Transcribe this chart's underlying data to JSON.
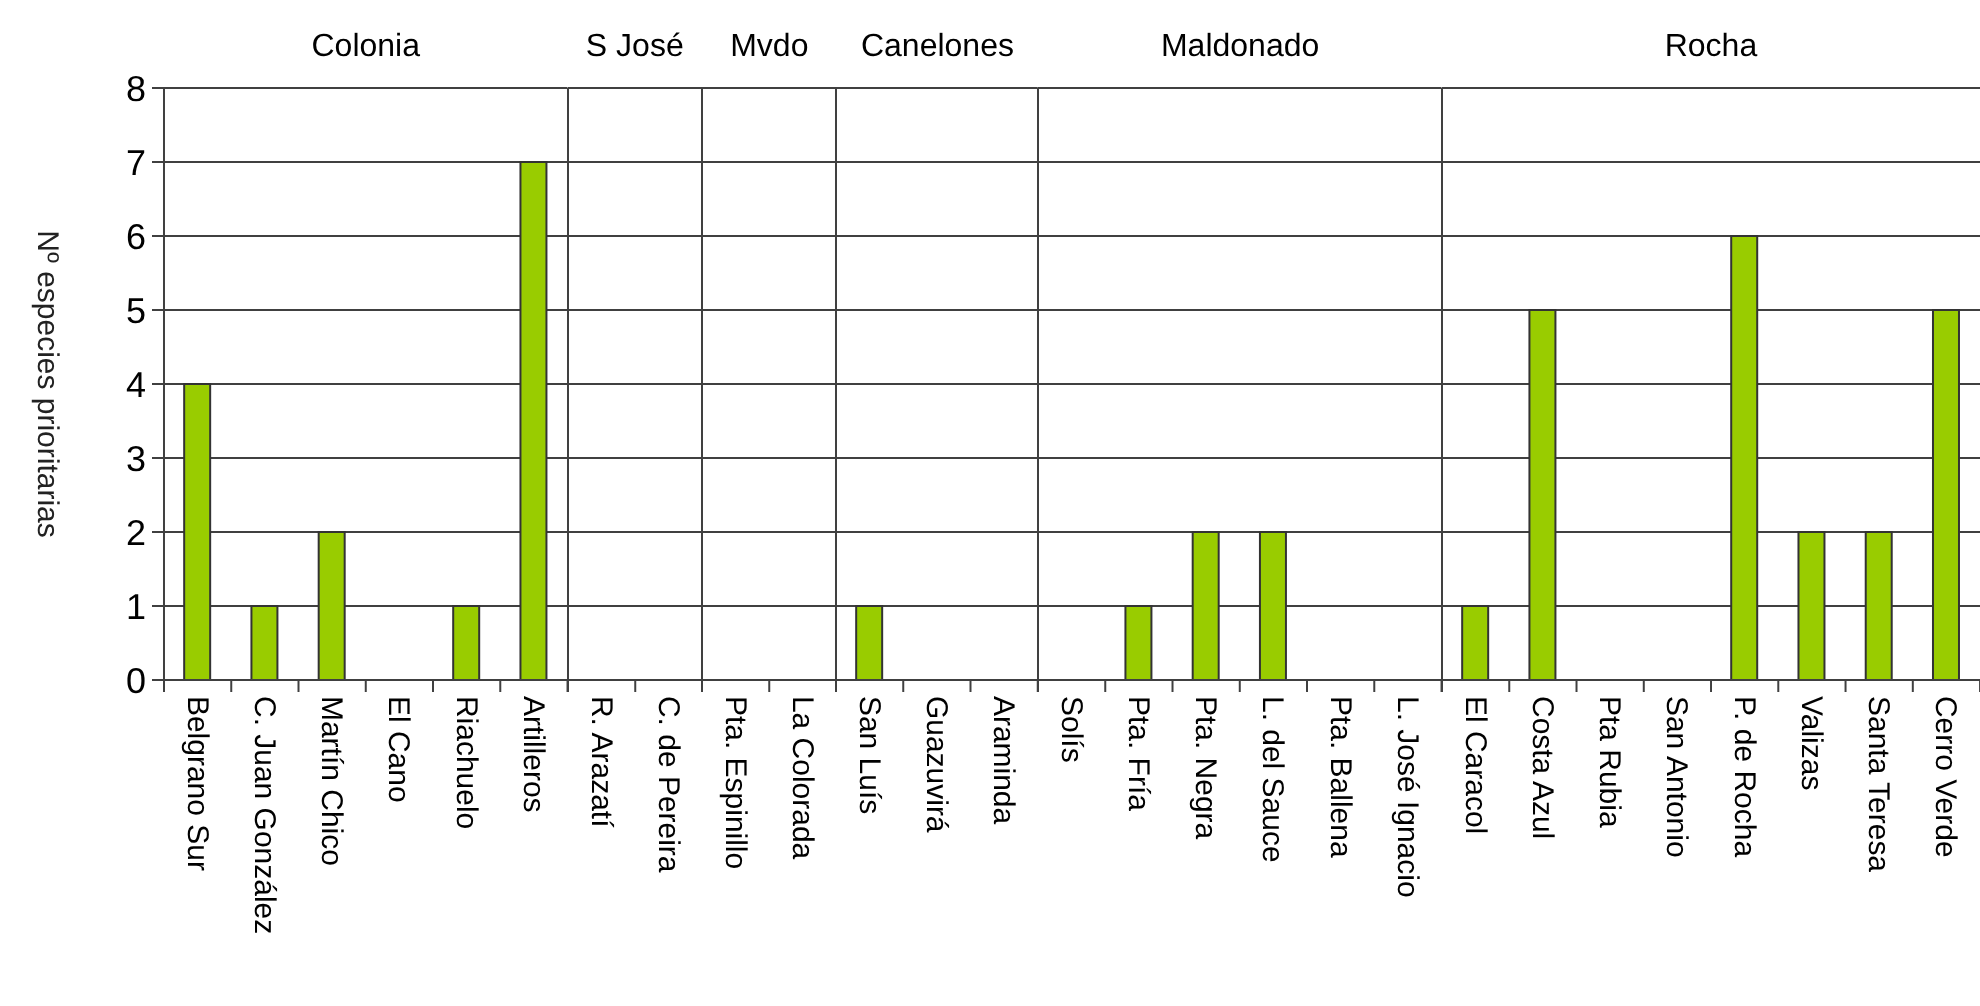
{
  "chart_data": [
    {
      "type": "bar",
      "title": "Colonia",
      "ylabel": "Nº especies prioritarias",
      "categories": [
        "Belgrano Sur",
        "C. Juan González",
        "Martín Chico",
        "El Cano",
        "Riachuelo",
        "Artilleros"
      ],
      "values": [
        4,
        1,
        2,
        0,
        1,
        7
      ],
      "color": "#99cc00",
      "ylim": [
        0,
        8
      ],
      "yticks": [
        0,
        1,
        2,
        3,
        4,
        5,
        6,
        7,
        8
      ],
      "grid": "y"
    },
    {
      "type": "bar",
      "title": "S José",
      "categories": [
        "R. Arazatí",
        "C. de Pereira"
      ],
      "values": [
        0,
        0
      ],
      "color": "#99cc00",
      "ylim": [
        0,
        8
      ],
      "yticks": [
        0,
        1,
        2,
        3,
        4,
        5,
        6,
        7,
        8
      ],
      "grid": "y",
      "tick_labels": "x"
    },
    {
      "type": "bar",
      "title": "Mvdo",
      "categories": [
        "Pta. Espinillo",
        "La Colorada"
      ],
      "values": [
        0,
        0
      ],
      "color": "#99cc00",
      "ylim": [
        0,
        8
      ],
      "yticks": [
        0,
        1,
        2,
        3,
        4,
        5,
        6,
        7,
        8
      ],
      "grid": "y",
      "tick_labels": "x"
    },
    {
      "type": "bar",
      "title": "Canelones",
      "categories": [
        "San Luís",
        "Guazuvirá",
        "Araminda"
      ],
      "values": [
        1,
        0,
        0
      ],
      "color": "#99cc00",
      "ylim": [
        0,
        8
      ],
      "yticks": [
        0,
        1,
        2,
        3,
        4,
        5,
        6,
        7,
        8
      ],
      "grid": "y",
      "tick_labels": "x"
    },
    {
      "type": "bar",
      "title": "Maldonado",
      "categories": [
        "Solís",
        "Pta. Fría",
        "Pta. Negra",
        "L. del Sauce",
        "Pta. Ballena",
        "L. José Ignacio"
      ],
      "values": [
        0,
        1,
        2,
        2,
        0,
        0
      ],
      "color": "#99cc00",
      "ylim": [
        0,
        8
      ],
      "yticks": [
        0,
        1,
        2,
        3,
        4,
        5,
        6,
        7,
        8
      ],
      "grid": "y",
      "tick_labels": "x"
    },
    {
      "type": "bar",
      "title": "Rocha",
      "categories": [
        "El Caracol",
        "Costa Azul",
        "Pta Rubia",
        "San Antonio",
        "P. de Rocha",
        "Valizas",
        "Santa Teresa",
        "Cerro Verde"
      ],
      "values": [
        1,
        5,
        0,
        0,
        6,
        2,
        2,
        5
      ],
      "color": "#99cc00",
      "ylim": [
        0,
        8
      ],
      "yticks": [
        0,
        1,
        2,
        3,
        4,
        5,
        6,
        7,
        8
      ],
      "grid": "y",
      "tick_labels": "x"
    }
  ]
}
